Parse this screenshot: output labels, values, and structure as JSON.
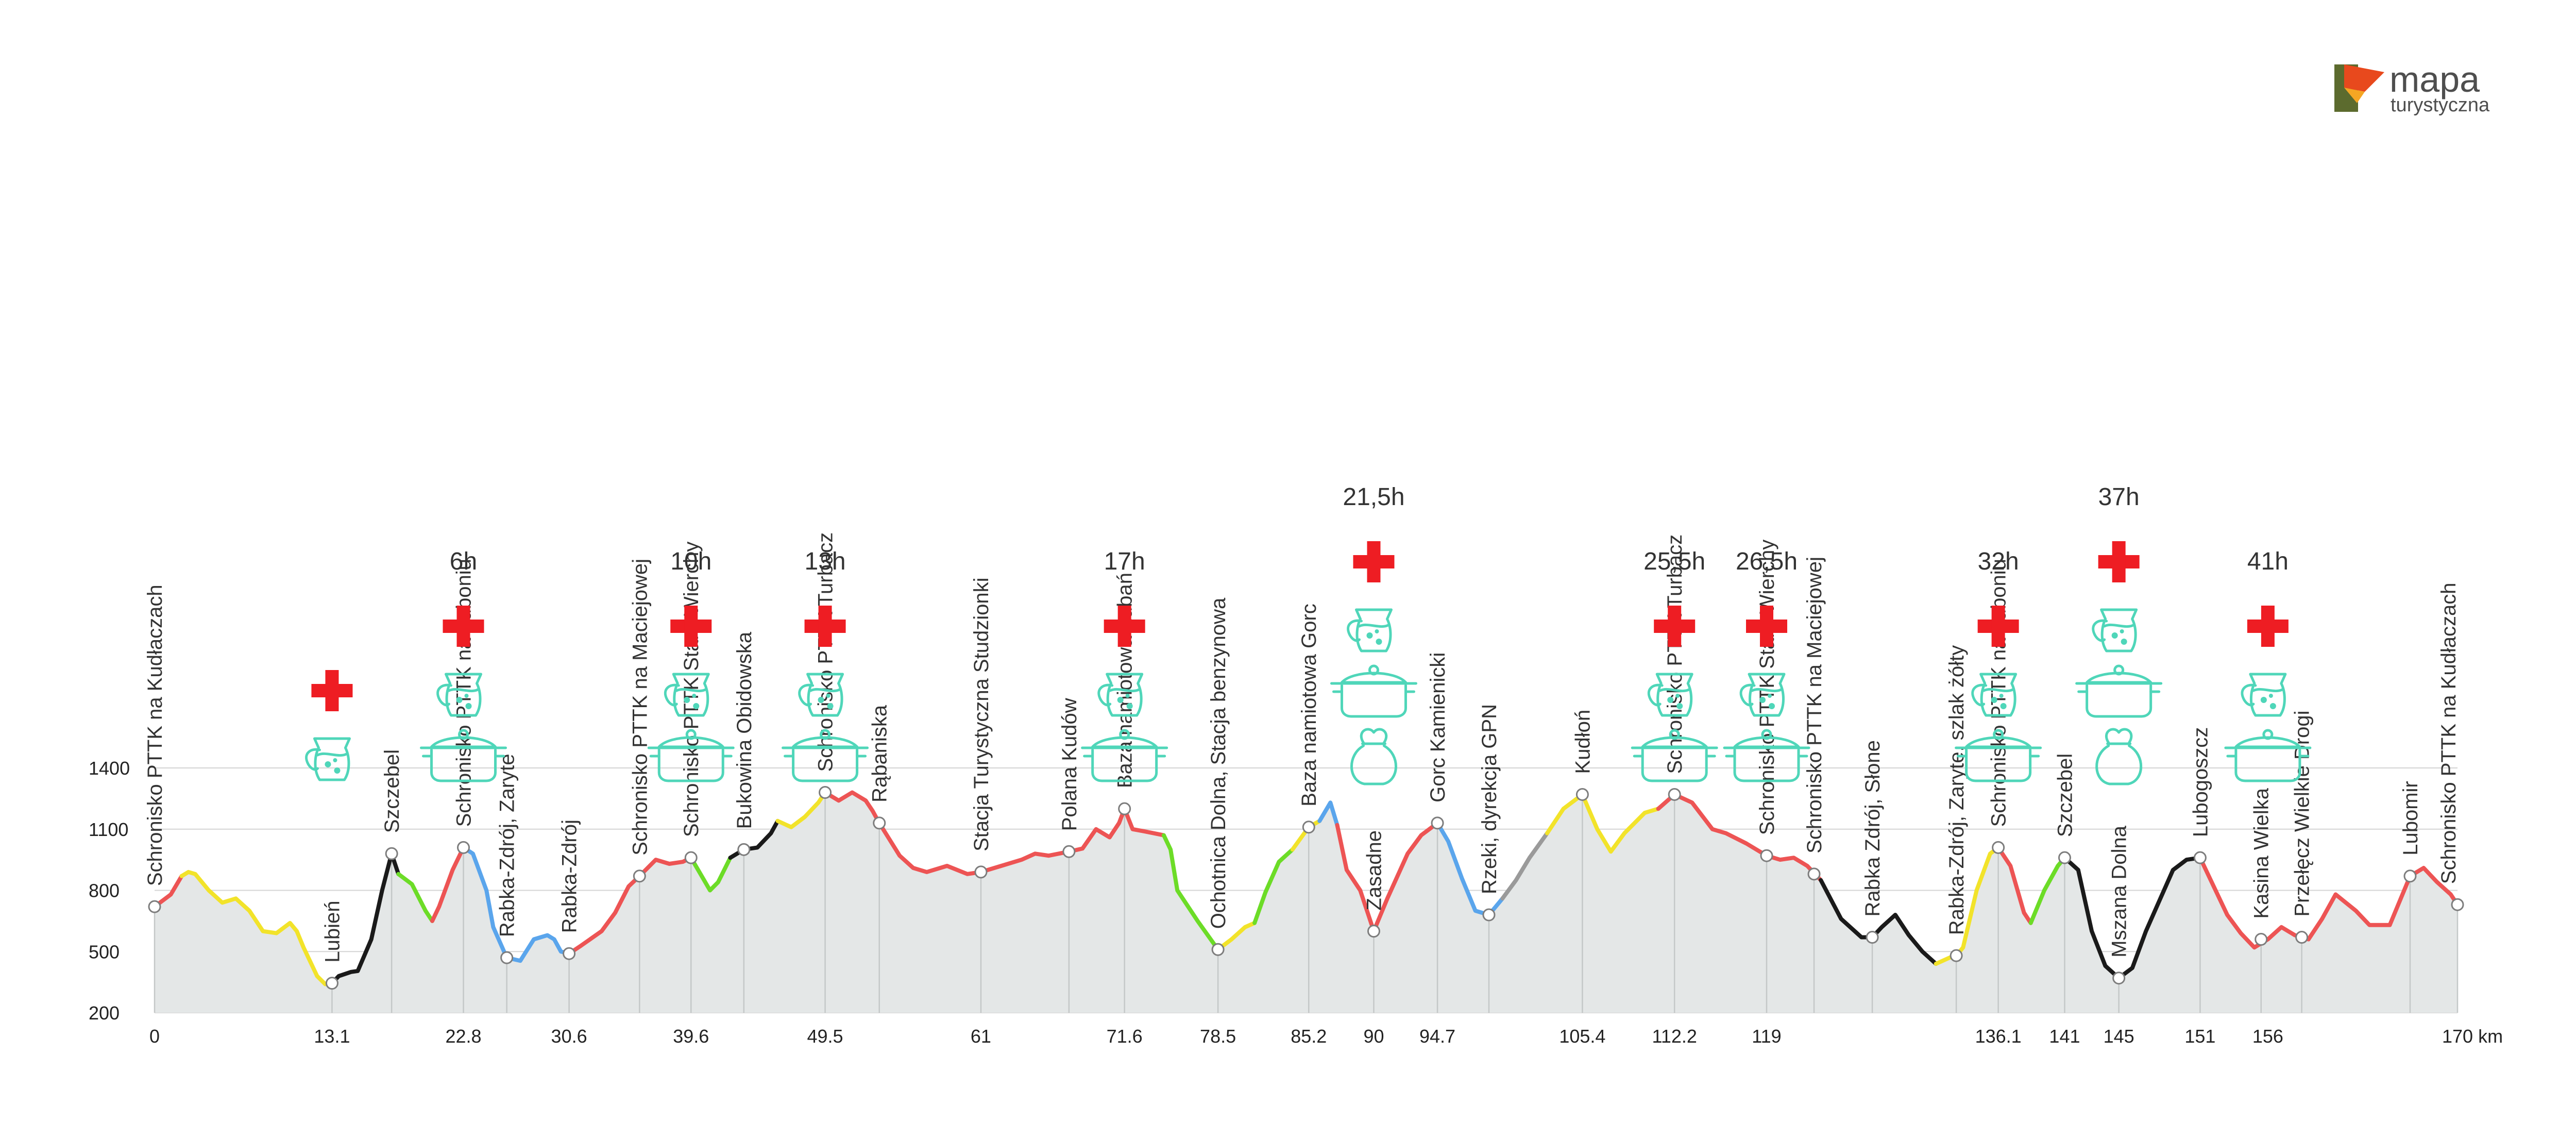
{
  "logo": {
    "word1": "mapa",
    "word2": "turystyczna",
    "colors": [
      "#e8491d",
      "#f5a623",
      "#5c6b2e"
    ]
  },
  "chart_data": {
    "type": "area",
    "xlabel": "",
    "ylabel": "",
    "x_unit": "km",
    "xlim": [
      0,
      170
    ],
    "ylim": [
      200,
      1400
    ],
    "yticks": [
      200,
      500,
      800,
      1100,
      1400
    ],
    "xticks": [
      "0",
      "13.1",
      "22.8",
      "30.6",
      "39.6",
      "49.5",
      "61",
      "71.6",
      "78.5",
      "85.2",
      "90",
      "94.7",
      "105.4",
      "112.2",
      "119",
      "136.1",
      "141",
      "145",
      "151",
      "156",
      "170 km"
    ],
    "xtick_values": [
      0,
      13.1,
      22.8,
      30.6,
      39.6,
      49.5,
      61,
      71.6,
      78.5,
      85.2,
      90,
      94.7,
      105.4,
      112.2,
      119,
      136.1,
      141,
      145,
      151,
      156,
      170
    ],
    "grid": true,
    "colors": {
      "red": "#ed5454",
      "yellow": "#f2e32a",
      "black": "#1a1a1a",
      "green": "#6cdc27",
      "blue": "#5aa5ec",
      "gray": "#9a9a9a",
      "fill": "#e4e7e7",
      "icon": "#4fd6b9",
      "aid": "#ee1d23"
    },
    "profile": [
      [
        0,
        720
      ],
      [
        1.2,
        780
      ],
      [
        2,
        870
      ],
      [
        2.5,
        890
      ],
      [
        3,
        880
      ],
      [
        4,
        800
      ],
      [
        5,
        740
      ],
      [
        6,
        760
      ],
      [
        7,
        700
      ],
      [
        8,
        600
      ],
      [
        9,
        590
      ],
      [
        10,
        640
      ],
      [
        10.5,
        600
      ],
      [
        11,
        520
      ],
      [
        12,
        380
      ],
      [
        12.6,
        340
      ],
      [
        13.1,
        345
      ],
      [
        13.6,
        380
      ],
      [
        14.5,
        400
      ],
      [
        15,
        405
      ],
      [
        16,
        560
      ],
      [
        16.8,
        800
      ],
      [
        17.5,
        980
      ],
      [
        18,
        880
      ],
      [
        19,
        830
      ],
      [
        20,
        700
      ],
      [
        20.5,
        650
      ],
      [
        21,
        720
      ],
      [
        22,
        900
      ],
      [
        22.8,
        1010
      ],
      [
        23.5,
        980
      ],
      [
        24.5,
        800
      ],
      [
        25,
        620
      ],
      [
        26,
        470
      ],
      [
        27,
        455
      ],
      [
        28,
        560
      ],
      [
        29,
        580
      ],
      [
        29.5,
        560
      ],
      [
        30,
        500
      ],
      [
        30.6,
        490
      ],
      [
        31.5,
        530
      ],
      [
        33,
        600
      ],
      [
        34,
        690
      ],
      [
        35,
        820
      ],
      [
        35.8,
        870
      ],
      [
        37,
        950
      ],
      [
        38,
        930
      ],
      [
        39,
        940
      ],
      [
        39.6,
        960
      ],
      [
        40.3,
        880
      ],
      [
        41,
        800
      ],
      [
        41.6,
        840
      ],
      [
        42.5,
        960
      ],
      [
        43.5,
        1000
      ],
      [
        44.5,
        1010
      ],
      [
        45.5,
        1080
      ],
      [
        46,
        1140
      ],
      [
        47,
        1110
      ],
      [
        48,
        1160
      ],
      [
        49,
        1230
      ],
      [
        49.5,
        1280
      ],
      [
        50.5,
        1240
      ],
      [
        51.5,
        1280
      ],
      [
        52.5,
        1240
      ],
      [
        53,
        1190
      ],
      [
        53.5,
        1130
      ],
      [
        55,
        970
      ],
      [
        56,
        910
      ],
      [
        57,
        890
      ],
      [
        58.5,
        920
      ],
      [
        60,
        880
      ],
      [
        61,
        890
      ],
      [
        62.5,
        920
      ],
      [
        64,
        950
      ],
      [
        65,
        980
      ],
      [
        66,
        970
      ],
      [
        67.5,
        990
      ],
      [
        68.5,
        1005
      ],
      [
        69.5,
        1100
      ],
      [
        70.5,
        1060
      ],
      [
        71.2,
        1130
      ],
      [
        71.6,
        1200
      ],
      [
        72.2,
        1100
      ],
      [
        73,
        1090
      ],
      [
        74.5,
        1070
      ],
      [
        75,
        1000
      ],
      [
        75.5,
        800
      ],
      [
        77,
        650
      ],
      [
        78.5,
        510
      ],
      [
        79.5,
        560
      ],
      [
        80.5,
        620
      ],
      [
        81.2,
        640
      ],
      [
        82,
        790
      ],
      [
        83,
        940
      ],
      [
        84,
        1000
      ],
      [
        85.2,
        1110
      ],
      [
        86,
        1140
      ],
      [
        86.8,
        1230
      ],
      [
        87.3,
        1120
      ],
      [
        88,
        900
      ],
      [
        89,
        800
      ],
      [
        90,
        600
      ],
      [
        91,
        760
      ],
      [
        92.5,
        980
      ],
      [
        93.5,
        1070
      ],
      [
        94.7,
        1130
      ],
      [
        95.5,
        1040
      ],
      [
        96.5,
        860
      ],
      [
        97.5,
        700
      ],
      [
        98.5,
        680
      ],
      [
        99.5,
        760
      ],
      [
        100.5,
        850
      ],
      [
        101.5,
        960
      ],
      [
        102.8,
        1080
      ],
      [
        104,
        1200
      ],
      [
        105.4,
        1270
      ],
      [
        106.5,
        1100
      ],
      [
        107.5,
        990
      ],
      [
        108.5,
        1080
      ],
      [
        110,
        1180
      ],
      [
        111,
        1200
      ],
      [
        112.2,
        1270
      ],
      [
        113.5,
        1230
      ],
      [
        115,
        1100
      ],
      [
        116,
        1080
      ],
      [
        117.5,
        1030
      ],
      [
        119,
        970
      ],
      [
        120,
        950
      ],
      [
        121,
        960
      ],
      [
        122,
        920
      ],
      [
        123,
        850
      ],
      [
        124.5,
        660
      ],
      [
        126,
        570
      ],
      [
        126.8,
        570
      ],
      [
        127.5,
        620
      ],
      [
        128.5,
        680
      ],
      [
        129.5,
        580
      ],
      [
        130.5,
        500
      ],
      [
        131.5,
        440
      ],
      [
        132.5,
        470
      ],
      [
        133,
        480
      ],
      [
        133.5,
        520
      ],
      [
        134.5,
        800
      ],
      [
        135.5,
        980
      ],
      [
        136.1,
        1010
      ],
      [
        137,
        920
      ],
      [
        138,
        690
      ],
      [
        138.5,
        640
      ],
      [
        139.5,
        800
      ],
      [
        140.5,
        920
      ],
      [
        141,
        960
      ],
      [
        142,
        900
      ],
      [
        143,
        600
      ],
      [
        144,
        430
      ],
      [
        145,
        370
      ],
      [
        146,
        420
      ],
      [
        147,
        600
      ],
      [
        148,
        750
      ],
      [
        149,
        900
      ],
      [
        150,
        950
      ],
      [
        151,
        960
      ],
      [
        152,
        820
      ],
      [
        153,
        680
      ],
      [
        154,
        590
      ],
      [
        155,
        520
      ],
      [
        156,
        560
      ],
      [
        157,
        620
      ],
      [
        158,
        580
      ],
      [
        159,
        560
      ],
      [
        160,
        660
      ],
      [
        161,
        780
      ],
      [
        162.5,
        700
      ],
      [
        163.5,
        630
      ],
      [
        165,
        630
      ],
      [
        166.5,
        870
      ],
      [
        167.5,
        910
      ],
      [
        168.5,
        840
      ],
      [
        169.5,
        780
      ],
      [
        170,
        730
      ]
    ],
    "segments": [
      {
        "from": 0,
        "to": 2,
        "color": "red"
      },
      {
        "from": 2,
        "to": 13.1,
        "color": "yellow"
      },
      {
        "from": 13.1,
        "to": 18,
        "color": "black"
      },
      {
        "from": 18,
        "to": 20.5,
        "color": "green"
      },
      {
        "from": 20.5,
        "to": 22.8,
        "color": "red"
      },
      {
        "from": 22.8,
        "to": 30.6,
        "color": "blue"
      },
      {
        "from": 30.6,
        "to": 39.6,
        "color": "red"
      },
      {
        "from": 39.6,
        "to": 42.5,
        "color": "green"
      },
      {
        "from": 42.5,
        "to": 46,
        "color": "black"
      },
      {
        "from": 46,
        "to": 49.5,
        "color": "yellow"
      },
      {
        "from": 49.5,
        "to": 74.5,
        "color": "red"
      },
      {
        "from": 74.5,
        "to": 78.5,
        "color": "green"
      },
      {
        "from": 78.5,
        "to": 81.2,
        "color": "yellow"
      },
      {
        "from": 81.2,
        "to": 84,
        "color": "green"
      },
      {
        "from": 84,
        "to": 86,
        "color": "yellow"
      },
      {
        "from": 86,
        "to": 87.3,
        "color": "blue"
      },
      {
        "from": 87.3,
        "to": 94.7,
        "color": "red"
      },
      {
        "from": 94.7,
        "to": 99.5,
        "color": "blue"
      },
      {
        "from": 99.5,
        "to": 102.8,
        "color": "gray"
      },
      {
        "from": 102.8,
        "to": 111,
        "color": "yellow"
      },
      {
        "from": 111,
        "to": 123,
        "color": "red"
      },
      {
        "from": 123,
        "to": 131.5,
        "color": "black"
      },
      {
        "from": 131.5,
        "to": 136.1,
        "color": "yellow"
      },
      {
        "from": 136.1,
        "to": 138.5,
        "color": "red"
      },
      {
        "from": 138.5,
        "to": 141,
        "color": "green"
      },
      {
        "from": 141,
        "to": 151,
        "color": "black"
      },
      {
        "from": 151,
        "to": 170,
        "color": "red"
      }
    ],
    "places": [
      {
        "km": 0,
        "name": "Schronisko PTTK na Kudłaczach",
        "elev": 720
      },
      {
        "km": 13.1,
        "name": "Lubień",
        "elev": 345
      },
      {
        "km": 17.5,
        "name": "Szczebel",
        "elev": 980
      },
      {
        "km": 22.8,
        "name": "Schronisko PTTK na Luboniu",
        "elev": 1010
      },
      {
        "km": 26,
        "name": "Rabka-Zdrój, Zaryte",
        "elev": 470
      },
      {
        "km": 30.6,
        "name": "Rabka-Zdrój",
        "elev": 490
      },
      {
        "km": 35.8,
        "name": "Schronisko PTTK na Maciejowej",
        "elev": 870
      },
      {
        "km": 39.6,
        "name": "Schronisko PTTK Stare Wierchy",
        "elev": 960
      },
      {
        "km": 43.5,
        "name": "Bukowina Obidowska",
        "elev": 1000
      },
      {
        "km": 49.5,
        "name": "Schronisko PTTK Turbacz",
        "elev": 1280
      },
      {
        "km": 53.5,
        "name": "Rąbaniska",
        "elev": 1130
      },
      {
        "km": 61,
        "name": "Stacja Turystyczna Studzionki",
        "elev": 890
      },
      {
        "km": 67.5,
        "name": "Polana Kudów",
        "elev": 990
      },
      {
        "km": 71.6,
        "name": "Baza namiotowa Lubań",
        "elev": 1200
      },
      {
        "km": 78.5,
        "name": "Ochotnica Dolna, Stacja benzynowa",
        "elev": 510
      },
      {
        "km": 85.2,
        "name": "Baza namiotowa Gorc",
        "elev": 1110
      },
      {
        "km": 90,
        "name": "Zasadne",
        "elev": 600
      },
      {
        "km": 94.7,
        "name": "Gorc Kamienicki",
        "elev": 1130
      },
      {
        "km": 98.5,
        "name": "Rzeki, dyrekcja GPN",
        "elev": 680
      },
      {
        "km": 105.4,
        "name": "Kudłoń",
        "elev": 1270
      },
      {
        "km": 112.2,
        "name": "Schronisko PTTK Turbacz",
        "elev": 1270
      },
      {
        "km": 119,
        "name": "Schronisko PTTK Stare Wierchy",
        "elev": 970
      },
      {
        "km": 122.5,
        "name": "Schronisko PTTK na Maciejowej",
        "elev": 880
      },
      {
        "km": 126.8,
        "name": "Rabka Zdrój, Słone",
        "elev": 570
      },
      {
        "km": 133,
        "name": "Rabka-Zdrój, Zaryte, szlak żółty",
        "elev": 480
      },
      {
        "km": 136.1,
        "name": "Schronisko PTTK na Luboniu",
        "elev": 1010
      },
      {
        "km": 141,
        "name": "Szczebel",
        "elev": 960
      },
      {
        "km": 145,
        "name": "Mszana Dolna",
        "elev": 370
      },
      {
        "km": 151,
        "name": "Lubogoszcz",
        "elev": 960
      },
      {
        "km": 155.5,
        "name": "Kasina Wielka",
        "elev": 560
      },
      {
        "km": 158.5,
        "name": "Przełęcz Wielkie Drogi",
        "elev": 570
      },
      {
        "km": 166.5,
        "name": "Lubomir",
        "elev": 870
      },
      {
        "km": 170,
        "name": "Schronisko PTTK na Kudłaczach",
        "elev": 730
      }
    ],
    "supply_points": [
      {
        "km": 13.1,
        "time": "",
        "icons": [
          "first-aid",
          "water"
        ]
      },
      {
        "km": 22.8,
        "time": "6h",
        "icons": [
          "first-aid",
          "water",
          "food"
        ]
      },
      {
        "km": 39.6,
        "time": "10h",
        "icons": [
          "first-aid",
          "water",
          "food"
        ]
      },
      {
        "km": 49.5,
        "time": "13h",
        "icons": [
          "first-aid",
          "water",
          "food"
        ]
      },
      {
        "km": 71.6,
        "time": "17h",
        "icons": [
          "first-aid",
          "water",
          "food"
        ]
      },
      {
        "km": 90,
        "time": "21,5h",
        "icons": [
          "first-aid",
          "water",
          "food",
          "bag"
        ]
      },
      {
        "km": 112.2,
        "time": "25,5h",
        "icons": [
          "first-aid",
          "water",
          "food"
        ]
      },
      {
        "km": 119,
        "time": "26,5h",
        "icons": [
          "first-aid",
          "water",
          "food"
        ]
      },
      {
        "km": 136.1,
        "time": "32h",
        "icons": [
          "first-aid",
          "water",
          "food"
        ]
      },
      {
        "km": 145,
        "time": "37h",
        "icons": [
          "first-aid",
          "water",
          "food",
          "bag"
        ]
      },
      {
        "km": 156,
        "time": "41h",
        "icons": [
          "first-aid",
          "water",
          "food"
        ]
      }
    ]
  }
}
